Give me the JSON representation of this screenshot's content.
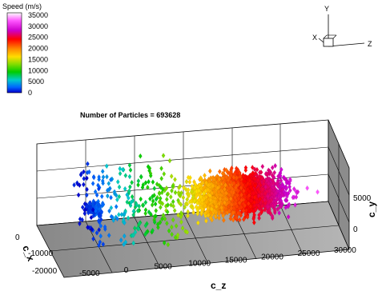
{
  "chart_data": {
    "type": "scatter",
    "title": "Number of Particles = 693628",
    "legend": {
      "title": "Speed (m/s)",
      "levels": [
        "35000",
        "30000",
        "25000",
        "20000",
        "15000",
        "10000",
        "5000",
        "0"
      ],
      "colors": [
        "#ffffff",
        "#ff55ff",
        "#cc00cc",
        "#ff0000",
        "#ff8800",
        "#ffdd00",
        "#88dd00",
        "#00cc00",
        "#00cccc",
        "#0066ff",
        "#0000cc"
      ],
      "placement": "top-left"
    },
    "axes": {
      "x": {
        "label": "c_x",
        "ticks": [
          "0",
          "-10000",
          "-20000"
        ]
      },
      "y": {
        "label": "c_y",
        "ticks": [
          "5000",
          "0"
        ]
      },
      "z": {
        "label": "c_z",
        "ticks": [
          "-5000",
          "0",
          "5000",
          "10000",
          "15000",
          "20000",
          "25000",
          "30000"
        ]
      }
    },
    "orientation_triad": {
      "labels": [
        "Y",
        "X",
        "Z"
      ]
    },
    "point_cloud": {
      "z_range": [
        -3000,
        35000
      ],
      "x_range": [
        -22000,
        2000
      ],
      "y_range": [
        -6000,
        6000
      ],
      "dense_region_z": [
        7000,
        33000
      ],
      "speed_range": [
        0,
        35000
      ]
    },
    "grid": true
  }
}
